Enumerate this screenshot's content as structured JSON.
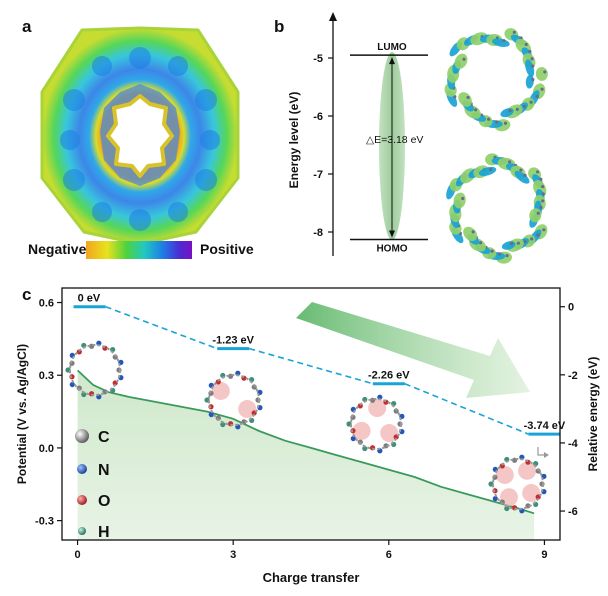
{
  "panels": {
    "a": {
      "label": "a",
      "scale": {
        "left_label": "Negative",
        "right_label": "Positive",
        "colors": [
          "#f2a51b",
          "#e8e21e",
          "#4fd23c",
          "#21c9c1",
          "#1d7fe6",
          "#4b2cd3",
          "#7a11c4"
        ]
      }
    },
    "b": {
      "label": "b",
      "y_axis_label": "Energy level (eV)",
      "y_ticks": [
        "-5",
        "-6",
        "-7",
        "-8"
      ],
      "lumo_label": "LUMO",
      "homo_label": "HOMO",
      "gap_label": "△E=3.18 eV",
      "lumo_value": -4.95,
      "homo_value": -8.13,
      "orbital_colors": [
        "#19a3d6",
        "#8fd06a"
      ]
    },
    "c": {
      "label": "c",
      "legend": [
        {
          "symbol": "C",
          "color": "#7d7d7d"
        },
        {
          "symbol": "N",
          "color": "#2457b8"
        },
        {
          "symbol": "O",
          "color": "#c62c2c"
        },
        {
          "symbol": "H",
          "color": "#3f8f79"
        }
      ]
    }
  },
  "chart_data": {
    "type": "line",
    "xlabel": "Charge transfer",
    "ylabel": "Potential (V vs. Ag/AgCl)",
    "y2label": "Relative energy (eV)",
    "xlim": [
      -0.3,
      9.3
    ],
    "ylim": [
      -0.38,
      0.66
    ],
    "y2lim": [
      -6.85,
      0.55
    ],
    "x_ticks": [
      0,
      3,
      6,
      9
    ],
    "y_ticks": [
      0.6,
      0.3,
      0.0,
      -0.3
    ],
    "y2_ticks": [
      0,
      -2,
      -4,
      -6
    ],
    "series": [
      {
        "axis": "left",
        "style": "line-filled",
        "color": "#3a9a5b",
        "x": [
          0.0,
          0.3,
          0.6,
          1.0,
          1.5,
          2.0,
          2.5,
          3.0,
          3.5,
          4.0,
          4.5,
          5.0,
          5.5,
          6.0,
          6.5,
          7.0,
          7.5,
          8.0,
          8.5,
          8.8
        ],
        "y": [
          0.32,
          0.26,
          0.23,
          0.21,
          0.19,
          0.17,
          0.15,
          0.12,
          0.07,
          0.03,
          0.0,
          -0.03,
          -0.06,
          -0.09,
          -0.12,
          -0.16,
          -0.19,
          -0.22,
          -0.25,
          -0.27
        ]
      },
      {
        "axis": "right",
        "style": "dashed-levels",
        "color": "#1aa3d6",
        "x": [
          0,
          3,
          6,
          9
        ],
        "y": [
          0,
          -1.23,
          -2.26,
          -3.74
        ],
        "labels": [
          "0 eV",
          "-1.23 eV",
          "-2.26 eV",
          "-3.74 eV"
        ]
      }
    ]
  }
}
